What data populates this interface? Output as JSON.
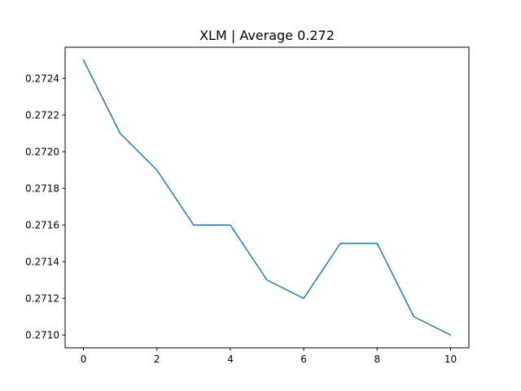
{
  "chart_data": {
    "type": "line",
    "title": "XLM | Average 0.272",
    "xlabel": "",
    "ylabel": "",
    "xlim": [
      -0.5,
      10.5
    ],
    "ylim": [
      0.27093,
      0.27257
    ],
    "x_ticks": [
      0,
      2,
      4,
      6,
      8,
      10
    ],
    "x_tick_labels": [
      "0",
      "2",
      "4",
      "6",
      "8",
      "10"
    ],
    "y_ticks": [
      0.271,
      0.2712,
      0.2714,
      0.2716,
      0.2718,
      0.272,
      0.2722,
      0.2724
    ],
    "y_tick_labels": [
      "0.2710",
      "0.2712",
      "0.2714",
      "0.2716",
      "0.2718",
      "0.2720",
      "0.2722",
      "0.2724"
    ],
    "grid": false,
    "legend": "none",
    "series": [
      {
        "color": "#1f77b4",
        "x": [
          0,
          1,
          2,
          3,
          4,
          5,
          6,
          7,
          8,
          9,
          10
        ],
        "values": [
          0.2725,
          0.2721,
          0.2719,
          0.2716,
          0.2716,
          0.2713,
          0.2712,
          0.2715,
          0.2715,
          0.2711,
          0.271
        ]
      }
    ]
  }
}
